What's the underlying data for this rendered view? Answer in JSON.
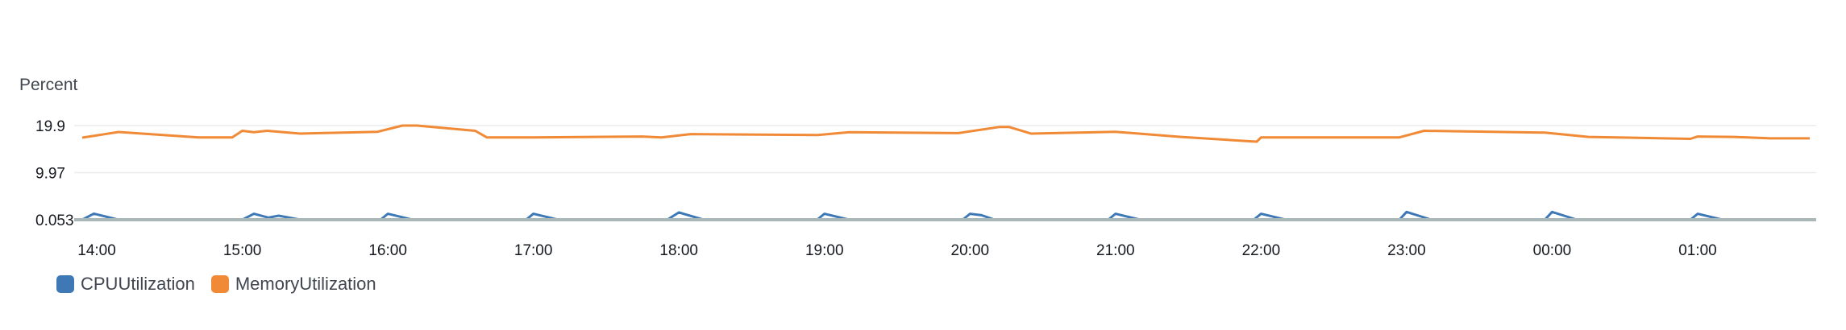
{
  "chart_data": {
    "type": "line",
    "ylabel": "Percent",
    "y_ticks": [
      "19.9",
      "9.97",
      "0.053"
    ],
    "y_tick_values": [
      19.9,
      9.97,
      0.053
    ],
    "ylim": [
      0.053,
      19.9
    ],
    "x_range": [
      13.9,
      25.77
    ],
    "x_ticks": [
      "14:00",
      "15:00",
      "16:00",
      "17:00",
      "18:00",
      "19:00",
      "20:00",
      "21:00",
      "22:00",
      "23:00",
      "00:00",
      "01:00"
    ],
    "x_tick_values": [
      14,
      15,
      16,
      17,
      18,
      19,
      20,
      21,
      22,
      23,
      24,
      25
    ],
    "series": [
      {
        "name": "CPUUtilization",
        "color": "#3e79b6",
        "x": [
          13.9,
          13.98,
          14.15,
          15.0,
          15.08,
          15.18,
          15.25,
          15.4,
          15.95,
          16.0,
          16.17,
          16.95,
          17.0,
          17.17,
          17.92,
          18.0,
          18.17,
          18.95,
          19.0,
          19.17,
          19.95,
          20.0,
          20.08,
          20.17,
          20.95,
          21.0,
          21.17,
          21.95,
          22.0,
          22.17,
          22.95,
          23.0,
          23.17,
          23.95,
          24.0,
          24.17,
          24.95,
          25.0,
          25.17,
          25.77
        ],
        "values": [
          0.053,
          1.35,
          0.053,
          0.053,
          1.3,
          0.5,
          0.9,
          0.053,
          0.053,
          1.3,
          0.053,
          0.053,
          1.3,
          0.053,
          0.053,
          1.6,
          0.053,
          0.053,
          1.3,
          0.053,
          0.053,
          1.3,
          1.0,
          0.053,
          0.053,
          1.3,
          0.053,
          0.053,
          1.3,
          0.053,
          0.053,
          1.7,
          0.053,
          0.053,
          1.7,
          0.053,
          0.053,
          1.3,
          0.053,
          0.053
        ]
      },
      {
        "name": "MemoryUtilization",
        "color": "#f08a36",
        "x": [
          13.9,
          14.15,
          14.7,
          14.93,
          15.0,
          15.08,
          15.17,
          15.4,
          15.93,
          16.1,
          16.2,
          16.6,
          16.68,
          17.0,
          17.75,
          17.88,
          18.08,
          18.95,
          19.17,
          19.92,
          20.2,
          20.27,
          20.42,
          21.0,
          21.45,
          21.92,
          21.97,
          22.0,
          22.95,
          23.12,
          23.95,
          24.25,
          24.95,
          25.0,
          25.25,
          25.5,
          25.77
        ],
        "values": [
          17.35,
          18.55,
          17.4,
          17.4,
          18.8,
          18.5,
          18.8,
          18.2,
          18.6,
          19.9,
          19.9,
          18.8,
          17.4,
          17.4,
          17.6,
          17.4,
          18.1,
          17.9,
          18.5,
          18.3,
          19.6,
          19.6,
          18.2,
          18.6,
          17.5,
          16.6,
          16.5,
          17.4,
          17.4,
          18.8,
          18.4,
          17.5,
          17.1,
          17.6,
          17.5,
          17.2,
          17.2
        ]
      }
    ],
    "legend_position": "bottom-left",
    "grid": true
  }
}
